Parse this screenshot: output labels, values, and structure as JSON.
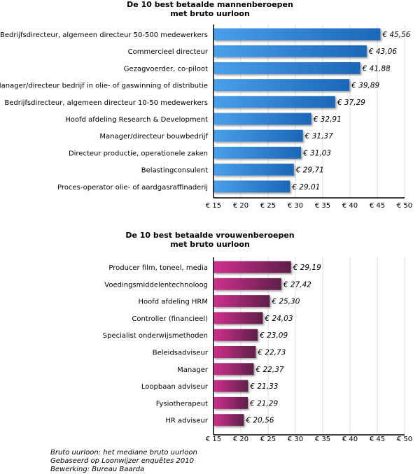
{
  "chart_data": [
    {
      "type": "bar",
      "orientation": "horizontal",
      "title": [
        "De 10 best betaalde mannenberoepen",
        "met bruto uurloon"
      ],
      "categories": [
        "Bedrijfsdirecteur, algemeen directeur 50-500 medewerkers",
        "Commercieel directeur",
        "Gezagvoerder, co-piloot",
        "Manager/directeur bedrijf in olie- of gaswinning of distributie",
        "Bedrijfsdirecteur, algemeen directeur 10-50 medewerkers",
        "Hoofd afdeling Research & Development",
        "Manager/directeur bouwbedrijf",
        "Directeur productie, operationele zaken",
        "Belastingconsulent",
        "Proces-operator olie- of aardgasraffinaderij"
      ],
      "values": [
        45.56,
        43.06,
        41.88,
        39.89,
        37.29,
        32.91,
        31.37,
        31.03,
        29.71,
        29.01
      ],
      "data_labels": [
        "€ 45,56",
        "€ 43,06",
        "€ 41,88",
        "€ 39,89",
        "€ 37,29",
        "€ 32,91",
        "€ 31,37",
        "€ 31,03",
        "€ 29,71",
        "€ 29,01"
      ],
      "xlim": [
        15,
        50
      ],
      "xticks": [
        15,
        20,
        25,
        30,
        35,
        40,
        45,
        50
      ],
      "xtick_labels": [
        "€ 15",
        "€ 20",
        "€ 25",
        "€ 30",
        "€ 35",
        "€ 40",
        "€ 45",
        "€ 50"
      ],
      "grid": true,
      "colors": [
        "#4a9fea",
        "#1c66b8"
      ]
    },
    {
      "type": "bar",
      "orientation": "horizontal",
      "title": [
        "De 10 best betaalde vrouwenberoepen",
        "met bruto uurloon"
      ],
      "categories": [
        "Producer film, toneel, media",
        "Voedingsmiddelentechnoloog",
        "Hoofd afdeling HRM",
        "Controller (financieel)",
        "Specialist onderwijsmethoden",
        "Beleidsadviseur",
        "Manager",
        "Loopbaan adviseur",
        "Fysiotherapeut",
        "HR adviseur"
      ],
      "values": [
        29.19,
        27.42,
        25.3,
        24.03,
        23.09,
        22.73,
        22.37,
        21.33,
        21.29,
        20.56
      ],
      "data_labels": [
        "€ 29,19",
        "€ 27,42",
        "€ 25,30",
        "€ 24,03",
        "€ 23,09",
        "€ 22,73",
        "€ 22,37",
        "€ 21,33",
        "€ 21,29",
        "€ 20,56"
      ],
      "xlim": [
        15,
        50
      ],
      "xticks": [
        15,
        20,
        25,
        30,
        35,
        40,
        45,
        50
      ],
      "xtick_labels": [
        "€ 15",
        "€ 20",
        "€ 25",
        "€ 30",
        "€ 35",
        "€ 40",
        "€ 45",
        "€ 50"
      ],
      "grid": true,
      "colors": [
        "#d0308f",
        "#5e1f48"
      ]
    }
  ],
  "notes": [
    "Bruto uurloon: het mediane bruto uurloon",
    "Gebaseerd op Loonwijzer enquêtes 2010",
    "Bewerking: Bureau Baarda"
  ]
}
